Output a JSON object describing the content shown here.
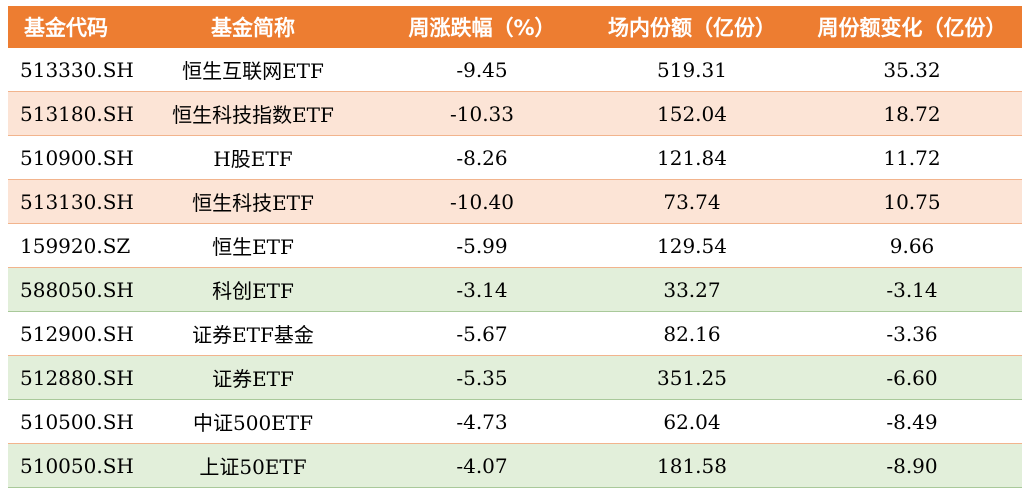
{
  "table": {
    "headers": [
      "基金代码",
      "基金简称",
      "周涨跌幅（%）",
      "场内份额（亿份）",
      "周份额变化（亿份）"
    ],
    "rows": [
      {
        "code": "513330.SH",
        "name": "恒生互联网ETF",
        "weekly_change_pct": "-9.45",
        "onexchange_shares": "519.31",
        "weekly_share_change": "35.32",
        "highlight": "plain"
      },
      {
        "code": "513180.SH",
        "name": "恒生科技指数ETF",
        "weekly_change_pct": "-10.33",
        "onexchange_shares": "152.04",
        "weekly_share_change": "18.72",
        "highlight": "pos"
      },
      {
        "code": "510900.SH",
        "name": "H股ETF",
        "weekly_change_pct": "-8.26",
        "onexchange_shares": "121.84",
        "weekly_share_change": "11.72",
        "highlight": "plain"
      },
      {
        "code": "513130.SH",
        "name": "恒生科技ETF",
        "weekly_change_pct": "-10.40",
        "onexchange_shares": "73.74",
        "weekly_share_change": "10.75",
        "highlight": "pos"
      },
      {
        "code": "159920.SZ",
        "name": "恒生ETF",
        "weekly_change_pct": "-5.99",
        "onexchange_shares": "129.54",
        "weekly_share_change": "9.66",
        "highlight": "plain"
      },
      {
        "code": "588050.SH",
        "name": "科创ETF",
        "weekly_change_pct": "-3.14",
        "onexchange_shares": "33.27",
        "weekly_share_change": "-3.14",
        "highlight": "neg"
      },
      {
        "code": "512900.SH",
        "name": "证券ETF基金",
        "weekly_change_pct": "-5.67",
        "onexchange_shares": "82.16",
        "weekly_share_change": "-3.36",
        "highlight": "plain"
      },
      {
        "code": "512880.SH",
        "name": "证券ETF",
        "weekly_change_pct": "-5.35",
        "onexchange_shares": "351.25",
        "weekly_share_change": "-6.60",
        "highlight": "neg"
      },
      {
        "code": "510500.SH",
        "name": "中证500ETF",
        "weekly_change_pct": "-4.73",
        "onexchange_shares": "62.04",
        "weekly_share_change": "-8.49",
        "highlight": "plain"
      },
      {
        "code": "510050.SH",
        "name": "上证50ETF",
        "weekly_change_pct": "-4.07",
        "onexchange_shares": "181.58",
        "weekly_share_change": "-8.90",
        "highlight": "neg"
      }
    ]
  },
  "colors": {
    "header_bg": "#ed7d31",
    "positive_row_bg": "#fce4d6",
    "negative_row_bg": "#e2efda"
  }
}
